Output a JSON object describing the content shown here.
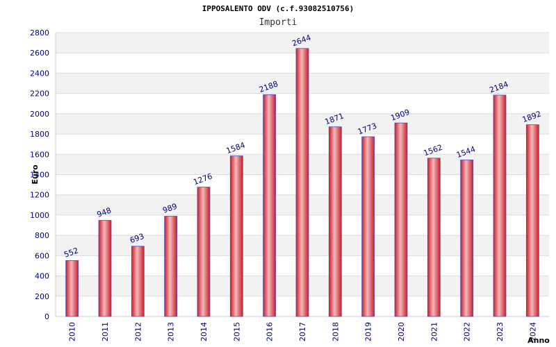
{
  "chart_data": {
    "type": "bar",
    "title": "IPPOSALENTO ODV (c.f.93082510756)",
    "subtitle": "Importi",
    "xlabel": "Anno",
    "ylabel": "Euro",
    "categories": [
      "2010",
      "2011",
      "2012",
      "2013",
      "2014",
      "2015",
      "2016",
      "2017",
      "2018",
      "2019",
      "2020",
      "2021",
      "2022",
      "2023",
      "2024"
    ],
    "series": [
      {
        "values": [
          552,
          948,
          693,
          989,
          1276,
          1584,
          2188,
          2644,
          1871,
          1773,
          1909,
          1562,
          1544,
          2184,
          1892
        ]
      }
    ],
    "ylim": [
      0,
      2800
    ],
    "yticks": [
      0,
      200,
      400,
      600,
      800,
      1000,
      1200,
      1400,
      1600,
      1800,
      2000,
      2200,
      2400,
      2600,
      2800
    ],
    "grid": true,
    "colors": {
      "bar": "#e0303a",
      "bar_highlight": "#f6b8bc",
      "bar_edge": "#5050c0",
      "label": "#000080",
      "band": "#f2f2f2"
    }
  }
}
